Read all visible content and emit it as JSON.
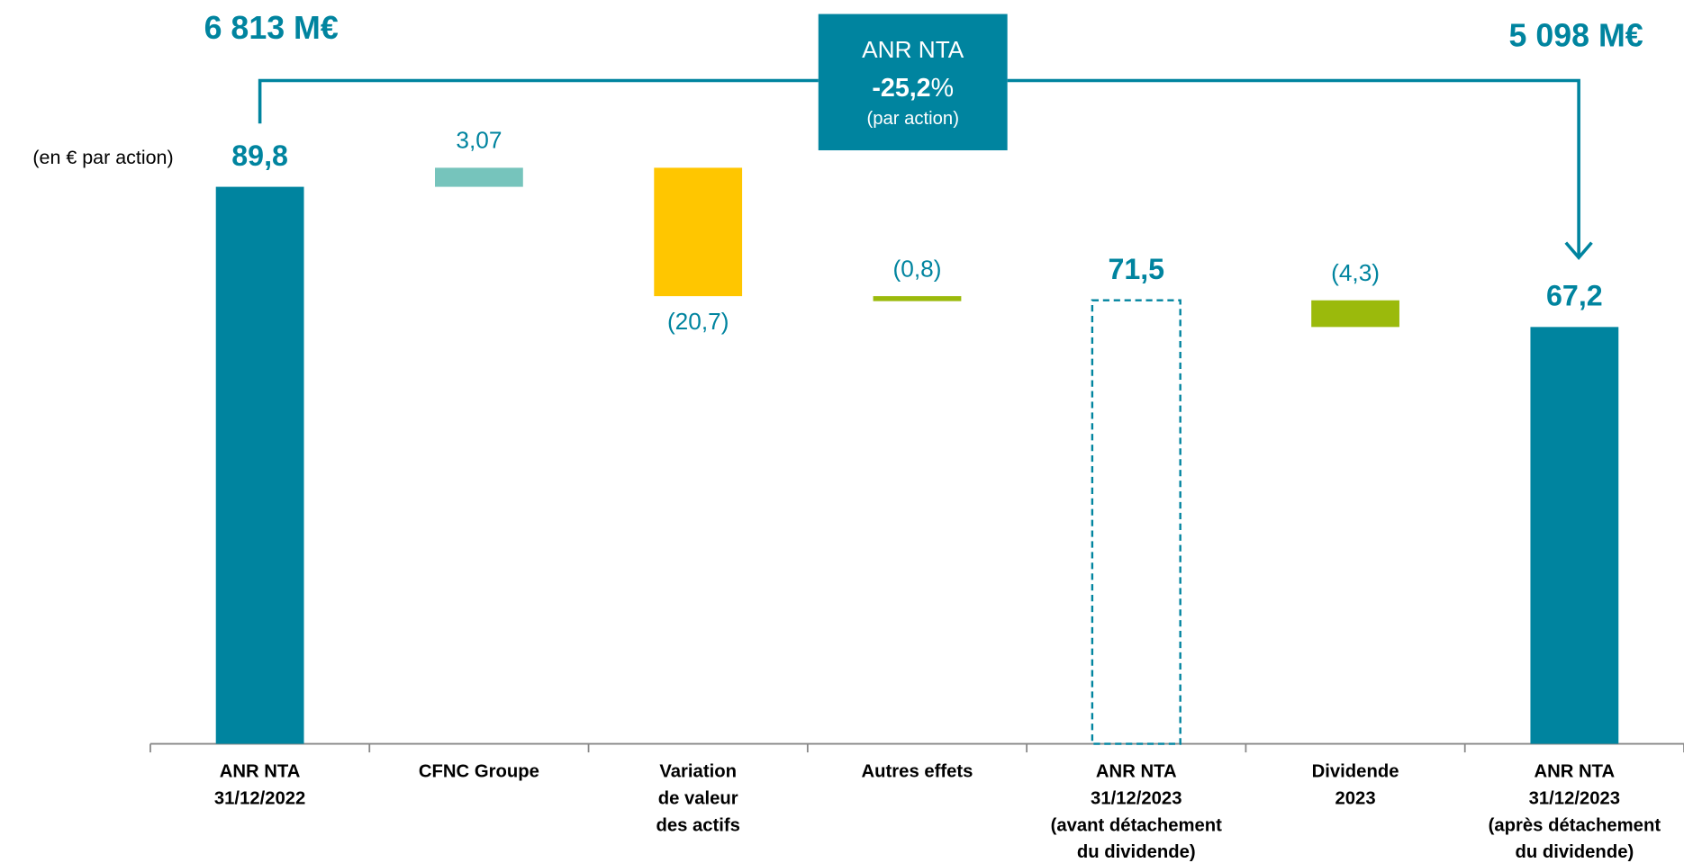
{
  "chart_data": {
    "type": "waterfall",
    "unit_label": "(en € par action)",
    "left_total": "6 813 M€",
    "right_total": "5 098 M€",
    "change_box": {
      "title": "ANR NTA",
      "change": "-25,2",
      "change_unit": "%",
      "note": "(par action)"
    },
    "categories": [
      [
        "ANR NTA",
        "31/12/2022"
      ],
      [
        "CFNC Groupe"
      ],
      [
        "Variation",
        "de valeur",
        "des actifs"
      ],
      [
        "Autres effets"
      ],
      [
        "ANR NTA",
        "31/12/2023",
        "(avant détachement",
        "du dividende)"
      ],
      [
        "Dividende",
        "2023"
      ],
      [
        "ANR NTA",
        "31/12/2023",
        "(après détachement",
        "du dividende)"
      ]
    ],
    "values": [
      89.8,
      3.07,
      -20.7,
      -0.8,
      71.5,
      -4.3,
      67.2
    ],
    "value_labels": [
      "89,8",
      "3,07",
      "(20,7)",
      "(0,8)",
      "71,5",
      "(4,3)",
      "67,2"
    ],
    "kinds": [
      "total",
      "delta",
      "delta",
      "delta",
      "subtotal",
      "delta",
      "total"
    ],
    "colors": [
      "#00849f",
      "#76c4bc",
      "#ffc600",
      "#9bba0c",
      "#00849f",
      "#9bba0c",
      "#00849f"
    ]
  }
}
